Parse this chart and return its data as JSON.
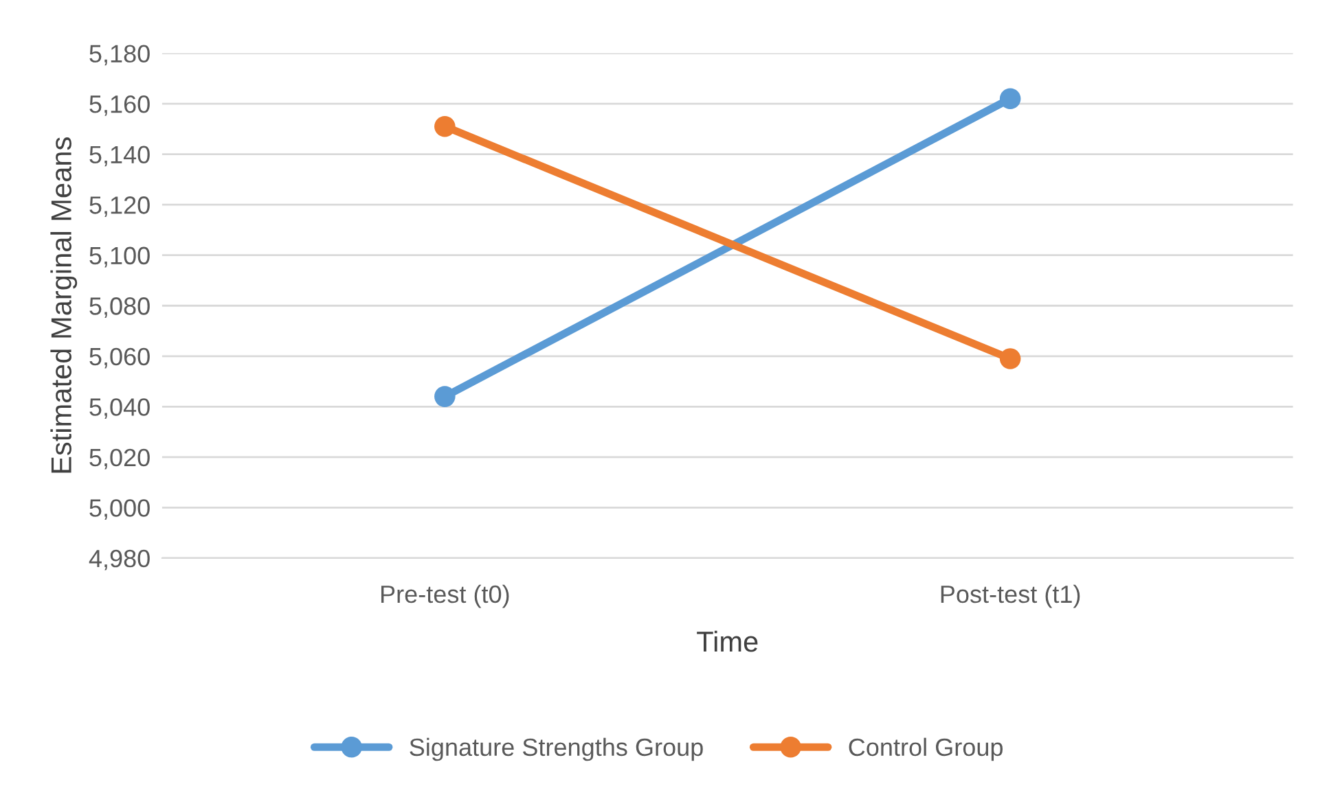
{
  "chart_data": {
    "type": "line",
    "xlabel": "Time",
    "ylabel": "Estimated Marginal Means",
    "categories": [
      "Pre-test (t0)",
      "Post-test (t1)"
    ],
    "series": [
      {
        "name": "Signature Strengths Group",
        "color": "#5b9bd5",
        "values": [
          5044,
          5162
        ]
      },
      {
        "name": "Control Group",
        "color": "#ed7d31",
        "values": [
          5151,
          5059
        ]
      }
    ],
    "ylim": [
      4980,
      5180
    ],
    "yticks": [
      {
        "value": 4980,
        "label": "4,980"
      },
      {
        "value": 5000,
        "label": "5,000"
      },
      {
        "value": 5020,
        "label": "5,020"
      },
      {
        "value": 5040,
        "label": "5,040"
      },
      {
        "value": 5060,
        "label": "5,060"
      },
      {
        "value": 5080,
        "label": "5,080"
      },
      {
        "value": 5100,
        "label": "5,100"
      },
      {
        "value": 5120,
        "label": "5,120"
      },
      {
        "value": 5140,
        "label": "5,140"
      },
      {
        "value": 5160,
        "label": "5,160"
      },
      {
        "value": 5180,
        "label": "5,180"
      }
    ],
    "grid": "y",
    "legend": "bottom",
    "marker": "circle",
    "line_style": "solid"
  }
}
